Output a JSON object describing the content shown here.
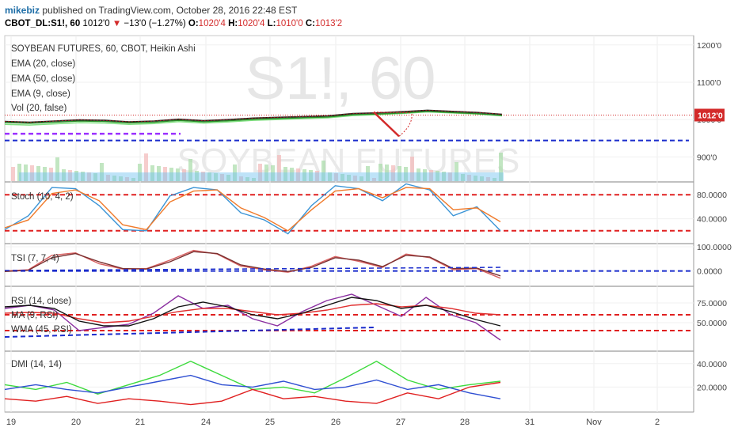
{
  "header": {
    "user": "mikebiz",
    "published": "published on TradingView.com, October 28, 2016 22:48 EST",
    "symbol": "CBOT_DL:S1!, 60",
    "last": "1012'0",
    "change_arrow": "▼",
    "change": "−13'0 (−1.27%)",
    "open_label": "O:",
    "open": "1020'4",
    "high_label": "H:",
    "high": "1020'4",
    "low_label": "L:",
    "low": "1010'0",
    "close_label": "C:",
    "close": "1013'2"
  },
  "colors": {
    "down": "#d32a2a",
    "ema20": "#2a8f2a",
    "ema50": "#7fe07f",
    "ema9": "#b71c1c",
    "stoch_k": "#3a94d6",
    "stoch_d": "#f07a2a",
    "tsi": "#d96060",
    "tsi_sig": "#7a3030",
    "rsi": "#8a2ea0",
    "rsi_ma": "#e03030",
    "rsi_wma": "#111111",
    "dmi_plus": "#2f4fd2",
    "dmi_minus": "#e02020",
    "adx": "#3dda3d",
    "guide_red": "#e02020",
    "guide_blue": "#1a2ccc",
    "purple": "#9b30ff"
  },
  "chart_data": [
    {
      "type": "line",
      "title": "SOYBEAN FUTURES, 60, CBOT, Heikin Ashi",
      "watermark": [
        "S1!, 60",
        "SOYBEAN FUTURES"
      ],
      "legend": [
        "EMA (20, close)",
        "EMA (50, close)",
        "EMA (9, close)",
        "Vol (20, false)"
      ],
      "yticks": [
        "1200'0",
        "1100'0",
        "1000'0",
        "900'0"
      ],
      "ytick_values": [
        1200,
        1100,
        1000,
        900
      ],
      "ylim": [
        835,
        1225
      ],
      "last_price": "1012'0",
      "last_price_value": 1012,
      "series": [
        {
          "values": [
            995,
            993,
            996,
            999,
            998,
            994,
            996,
            1001,
            997,
            1000,
            1004,
            1006,
            1008,
            1010,
            1016,
            1018,
            1021,
            1025,
            1022,
            1019,
            1014
          ]
        }
      ],
      "dashed_level": 944,
      "purple_level": 962
    },
    {
      "type": "line",
      "legend": "Stoch (10, 4, 2)",
      "yticks": [
        "80.0000",
        "40.0000"
      ],
      "ytick_values": [
        80,
        40
      ],
      "ylim": [
        0,
        100
      ],
      "levels": [
        80,
        20
      ],
      "series": [
        {
          "name": "%K",
          "values": [
            22,
            45,
            92,
            90,
            62,
            22,
            20,
            78,
            92,
            88,
            50,
            38,
            15,
            62,
            95,
            90,
            70,
            98,
            88,
            45,
            60,
            20
          ]
        },
        {
          "name": "%D",
          "values": [
            25,
            38,
            82,
            88,
            70,
            30,
            22,
            68,
            86,
            88,
            58,
            42,
            20,
            55,
            86,
            90,
            75,
            92,
            90,
            55,
            58,
            35
          ]
        }
      ]
    },
    {
      "type": "line",
      "legend": "TSI (7, 7, 4)",
      "yticks": [
        "100.0000",
        "0.0000"
      ],
      "ytick_values": [
        100,
        0
      ],
      "ylim": [
        -60,
        110
      ],
      "levels": [
        0
      ],
      "series": [
        {
          "name": "TSI",
          "values": [
            0,
            5,
            65,
            75,
            30,
            8,
            10,
            45,
            85,
            70,
            20,
            5,
            -5,
            20,
            60,
            40,
            15,
            70,
            55,
            5,
            10,
            -30
          ]
        },
        {
          "name": "Signal",
          "values": [
            -2,
            3,
            55,
            72,
            38,
            10,
            8,
            38,
            80,
            72,
            25,
            8,
            -2,
            15,
            55,
            45,
            18,
            65,
            58,
            10,
            12,
            -20
          ]
        }
      ]
    },
    {
      "type": "line",
      "legend": [
        "RSI (14, close)",
        "MA (9, RSI)",
        "WMA (45, RSI)"
      ],
      "yticks": [
        "75.0000",
        "50.0000"
      ],
      "ytick_values": [
        75,
        50
      ],
      "ylim": [
        15,
        95
      ],
      "levels": [
        60,
        40
      ],
      "series": [
        {
          "name": "RSI",
          "values": [
            68,
            72,
            66,
            40,
            44,
            48,
            62,
            84,
            68,
            72,
            55,
            46,
            64,
            78,
            86,
            72,
            58,
            82,
            60,
            50,
            28
          ]
        },
        {
          "name": "MA",
          "values": [
            62,
            63,
            62,
            55,
            50,
            52,
            58,
            64,
            68,
            68,
            64,
            60,
            62,
            66,
            72,
            74,
            70,
            72,
            68,
            62,
            60
          ]
        },
        {
          "name": "WMA",
          "values": [
            70,
            72,
            68,
            52,
            46,
            46,
            55,
            70,
            76,
            70,
            60,
            55,
            62,
            72,
            82,
            78,
            68,
            72,
            64,
            54,
            46
          ]
        }
      ]
    },
    {
      "type": "line",
      "legend": "DMI (14, 14)",
      "yticks": [
        "40.0000",
        "20.0000"
      ],
      "ytick_values": [
        40,
        20
      ],
      "ylim": [
        0,
        50
      ],
      "series": [
        {
          "name": "ADX",
          "values": [
            22,
            18,
            24,
            14,
            22,
            30,
            42,
            30,
            18,
            20,
            15,
            28,
            42,
            26,
            18,
            22,
            25
          ]
        },
        {
          "name": "+DI",
          "values": [
            18,
            22,
            18,
            15,
            20,
            25,
            30,
            22,
            20,
            25,
            18,
            20,
            26,
            18,
            22,
            15,
            10
          ]
        },
        {
          "name": "-DI",
          "values": [
            10,
            8,
            12,
            6,
            10,
            8,
            5,
            8,
            18,
            10,
            12,
            8,
            6,
            15,
            10,
            20,
            24
          ]
        }
      ]
    }
  ],
  "xaxis": {
    "labels": [
      "19",
      "20",
      "21",
      "24",
      "25",
      "26",
      "27",
      "28",
      "31",
      "Nov",
      "2"
    ]
  }
}
